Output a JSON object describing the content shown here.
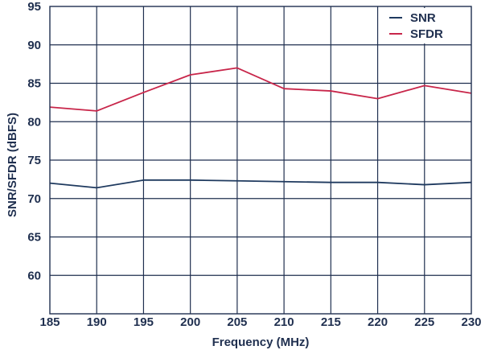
{
  "chart_data": {
    "type": "line",
    "xlabel": "Frequency (MHz)",
    "ylabel": "SNR/SFDR (dBFS)",
    "xlim": [
      185,
      230
    ],
    "ylim": [
      55,
      95
    ],
    "x_ticks": [
      185,
      190,
      195,
      200,
      205,
      210,
      215,
      220,
      225,
      230
    ],
    "y_ticks": [
      60,
      65,
      70,
      75,
      80,
      85,
      90,
      95
    ],
    "grid": true,
    "legend_position": "top-right",
    "x": [
      185,
      190,
      195,
      200,
      205,
      210,
      215,
      220,
      225,
      230
    ],
    "series": [
      {
        "name": "SNR",
        "color": "#1f3a5f",
        "values": [
          72.0,
          71.4,
          72.4,
          72.4,
          72.3,
          72.2,
          72.1,
          72.1,
          71.8,
          72.1
        ]
      },
      {
        "name": "SFDR",
        "color": "#c8264a",
        "values": [
          81.9,
          81.4,
          83.8,
          86.1,
          87.0,
          84.3,
          84.0,
          83.0,
          84.7,
          83.7
        ]
      }
    ]
  }
}
